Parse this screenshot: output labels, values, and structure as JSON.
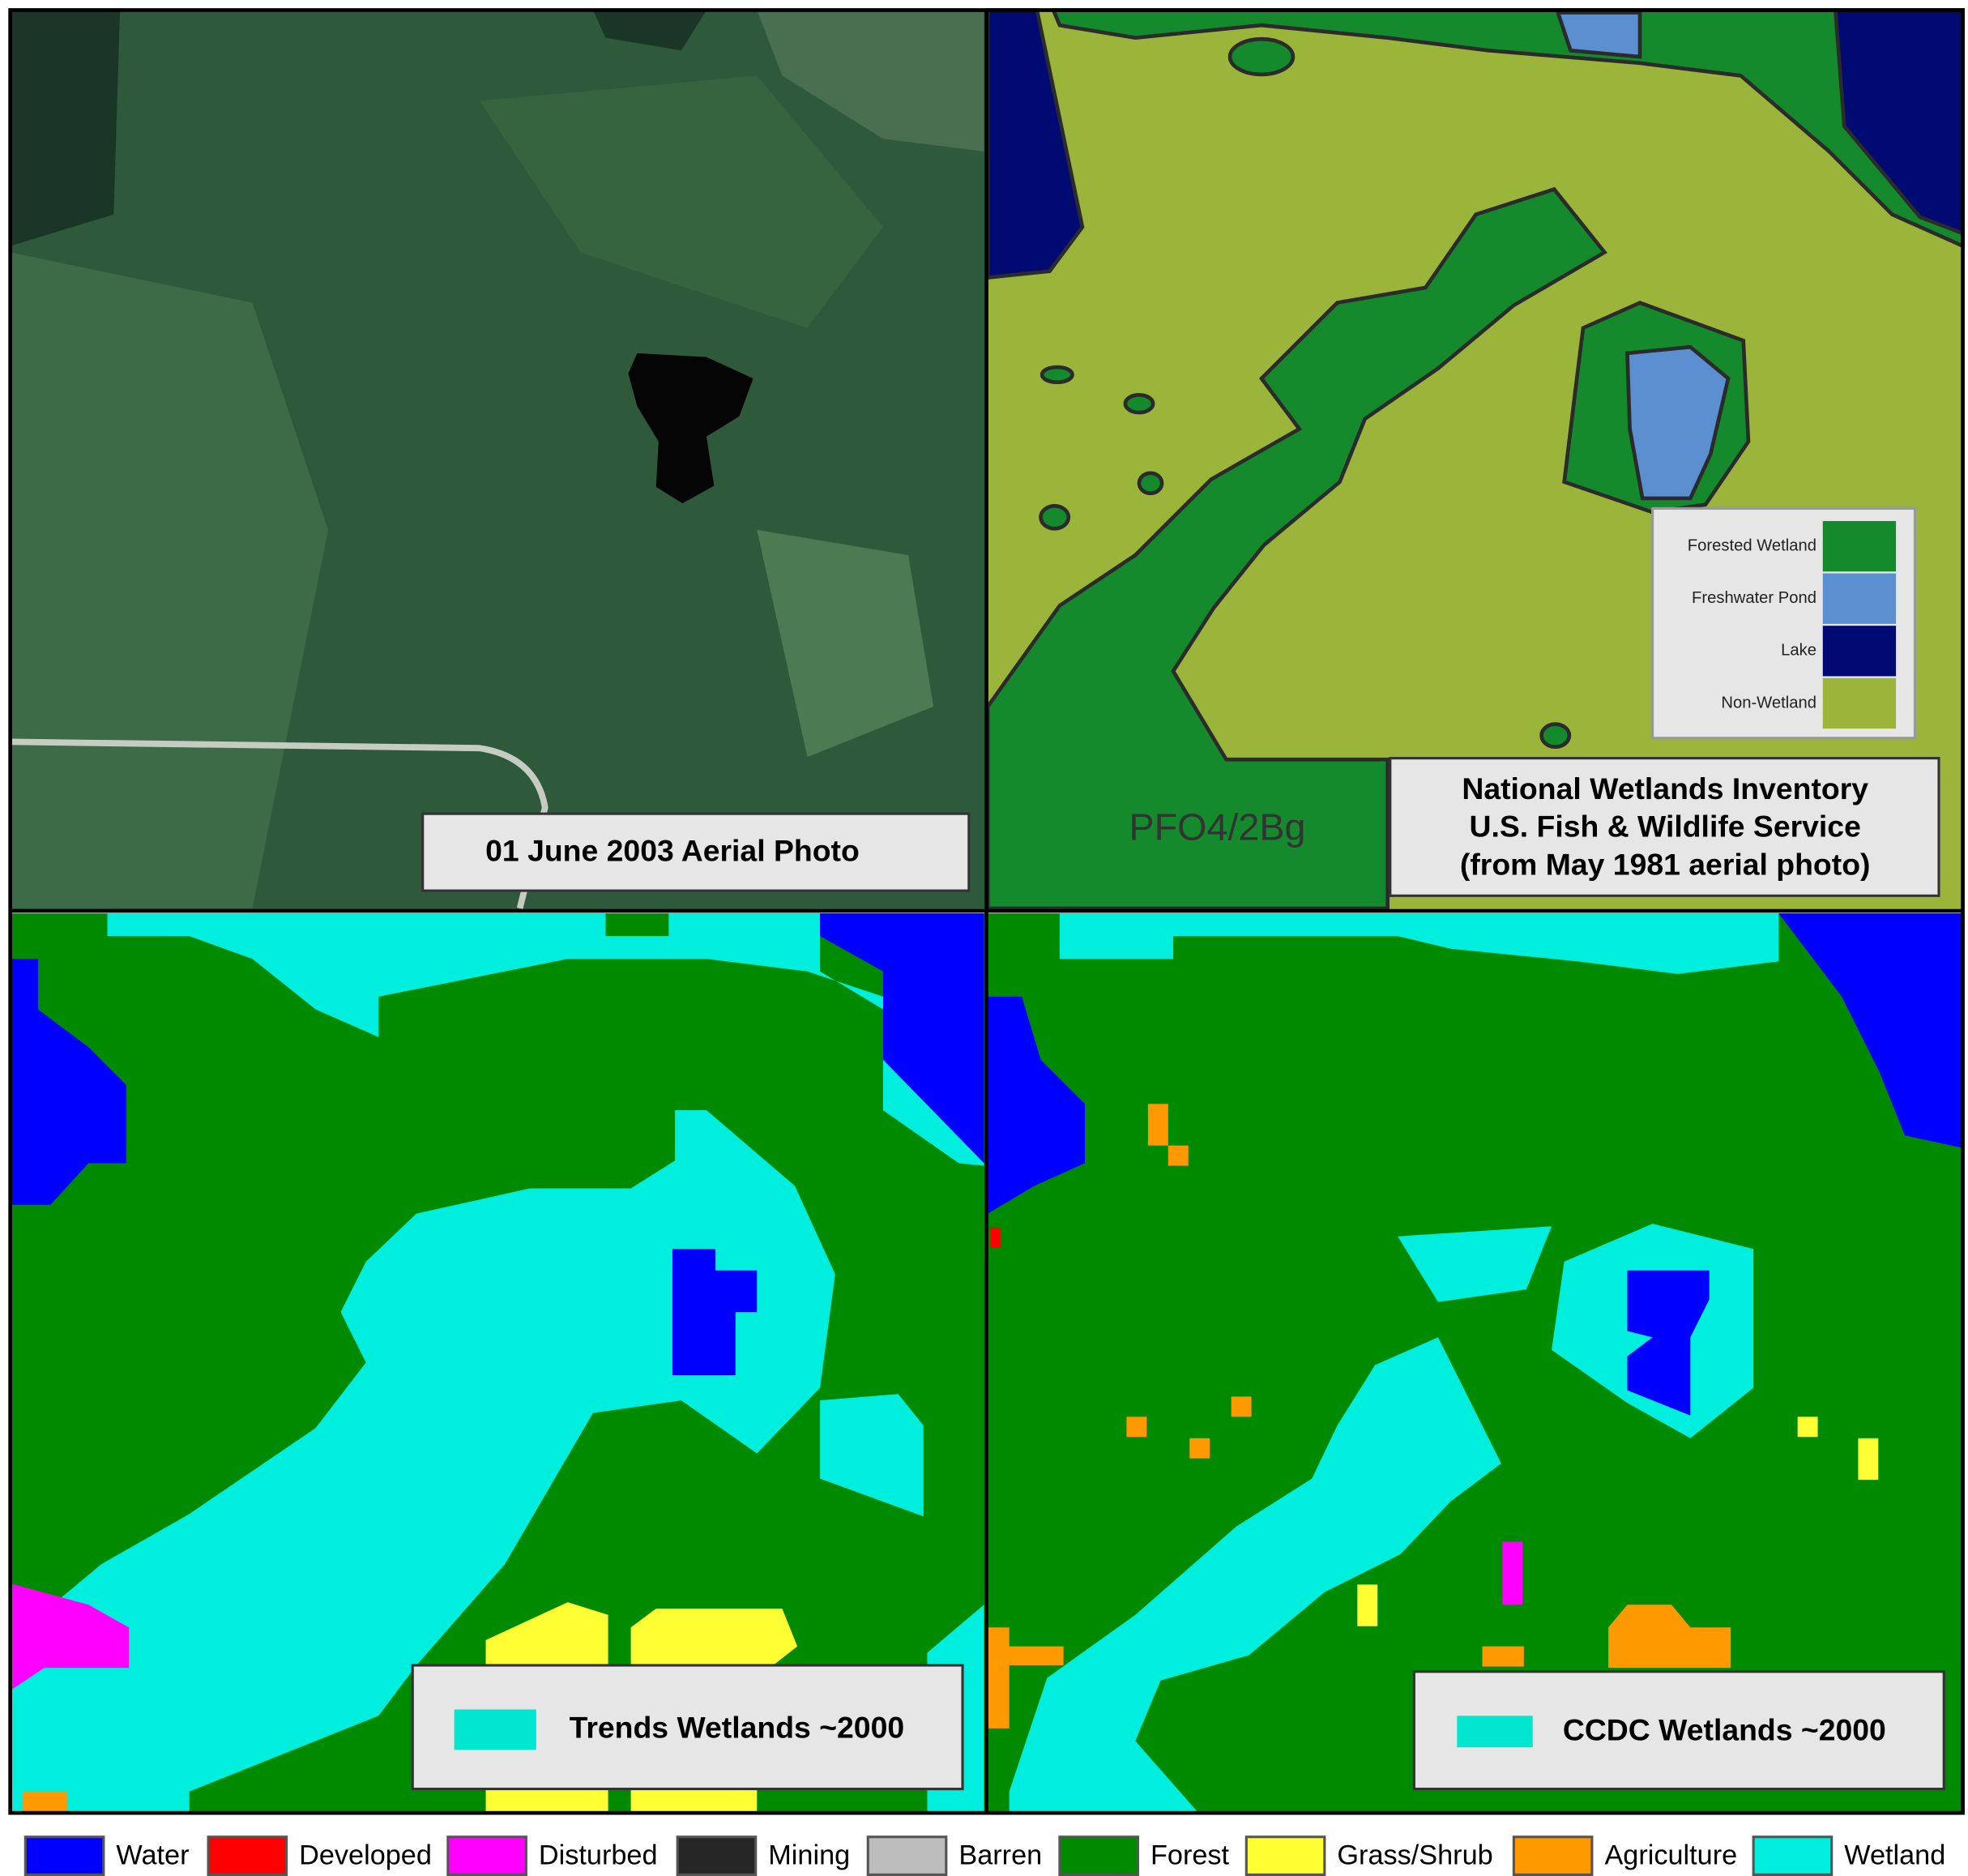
{
  "panels": {
    "aerial": {
      "label": "01 June 2003 Aerial Photo"
    },
    "nwi": {
      "map_text": "PFO4/2Bg",
      "legend": [
        {
          "label": "Forested Wetland",
          "color": "#158a2c"
        },
        {
          "label": "Freshwater Pond",
          "color": "#5b8fd0"
        },
        {
          "label": "Lake",
          "color": "#000a73"
        },
        {
          "label": "Non-Wetland",
          "color": "#9ab53a"
        }
      ],
      "caption": [
        "National Wetlands Inventory",
        "U.S. Fish & Wildlife Service",
        "(from May 1981 aerial photo)"
      ]
    },
    "trends": {
      "label": "Trends Wetlands ~2000",
      "swatch_color": "#00e6cf"
    },
    "ccdc": {
      "label": "CCDC Wetlands ~2000",
      "swatch_color": "#00e6cf"
    }
  },
  "legend": [
    {
      "label": "Water",
      "color": "#0000ff"
    },
    {
      "label": "Developed",
      "color": "#ff0000"
    },
    {
      "label": "Disturbed",
      "color": "#ff00ff"
    },
    {
      "label": "Mining",
      "color": "#262626"
    },
    {
      "label": "Barren",
      "color": "#bdbdbd"
    },
    {
      "label": "Forest",
      "color": "#008a00"
    },
    {
      "label": "Grass/Shrub",
      "color": "#ffff33"
    },
    {
      "label": "Agriculture",
      "color": "#ff9900"
    },
    {
      "label": "Wetland",
      "color": "#00eedd"
    }
  ]
}
